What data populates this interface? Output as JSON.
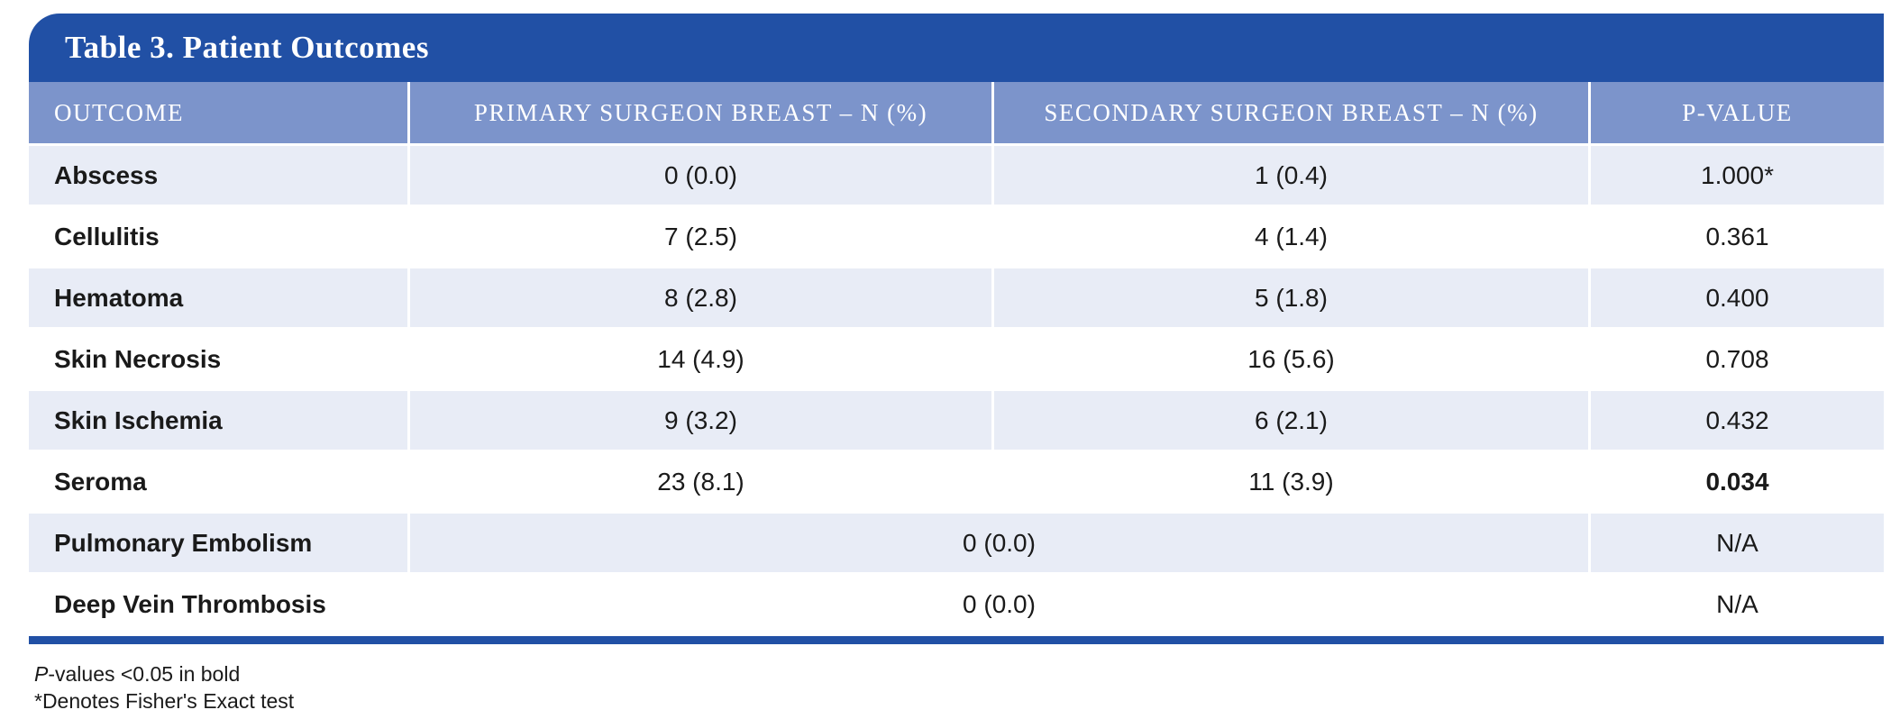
{
  "colors": {
    "title_bar_blue": "#2150A5",
    "header_blue": "#7C94CB",
    "row_light_blue": "#E8ECF6",
    "row_white": "#FFFFFF",
    "text_dark": "#1A1A1A",
    "bottom_rule_blue": "#2150A5"
  },
  "table": {
    "title": "Table 3. Patient Outcomes",
    "columns": [
      "OUTCOME",
      "PRIMARY SURGEON BREAST – N (%)",
      "SECONDARY SURGEON BREAST – N (%)",
      "P-VALUE"
    ],
    "rows": [
      {
        "outcome": "Abscess",
        "primary": "0 (0.0)",
        "secondary": "1 (0.4)",
        "pvalue": "1.000*"
      },
      {
        "outcome": "Cellulitis",
        "primary": "7 (2.5)",
        "secondary": "4 (1.4)",
        "pvalue": "0.361"
      },
      {
        "outcome": "Hematoma",
        "primary": "8 (2.8)",
        "secondary": "5 (1.8)",
        "pvalue": "0.400"
      },
      {
        "outcome": "Skin Necrosis",
        "primary": "14 (4.9)",
        "secondary": "16 (5.6)",
        "pvalue": "0.708"
      },
      {
        "outcome": "Skin Ischemia",
        "primary": "9 (3.2)",
        "secondary": "6 (2.1)",
        "pvalue": "0.432"
      },
      {
        "outcome": "Seroma",
        "primary": "23 (8.1)",
        "secondary": "11 (3.9)",
        "pvalue": "0.034"
      },
      {
        "outcome": "Pulmonary Embolism",
        "combined": "0 (0.0)",
        "pvalue": "N/A"
      },
      {
        "outcome": "Deep Vein Thrombosis",
        "combined": "0 (0.0)",
        "pvalue": "N/A"
      }
    ],
    "footnotes": [
      "P-values <0.05 in bold",
      "*Denotes Fisher's Exact test"
    ]
  }
}
